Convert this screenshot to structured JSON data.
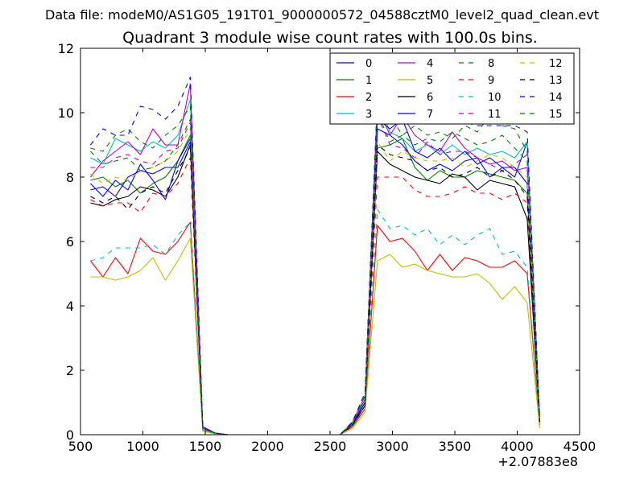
{
  "chart_data": {
    "type": "line",
    "suptitle": "Data file: modeM0/AS1G05_191T01_9000000572_04588cztM0_level2_quad_clean.evt",
    "title": "Quadrant 3 module wise count rates with 100.0s bins.",
    "xlabel": "",
    "ylabel": "",
    "x_offset_label": "+2.07883e8",
    "xlim": [
      500,
      4500
    ],
    "ylim": [
      0,
      12
    ],
    "xticks": [
      500,
      1000,
      1500,
      2000,
      2500,
      3000,
      3500,
      4000,
      4500
    ],
    "yticks": [
      0,
      2,
      4,
      6,
      8,
      10,
      12
    ],
    "grid": false,
    "legend": {
      "position": "top-right",
      "columns": 4
    },
    "x": [
      580,
      680,
      780,
      880,
      980,
      1080,
      1180,
      1280,
      1380,
      1480,
      1580,
      1680,
      1780,
      1880,
      1980,
      2080,
      2180,
      2280,
      2380,
      2480,
      2580,
      2680,
      2780,
      2880,
      2980,
      3080,
      3180,
      3280,
      3380,
      3480,
      3580,
      3680,
      3780,
      3880,
      3980,
      4080,
      4180
    ],
    "series": [
      {
        "name": "0",
        "color": "#0000ff",
        "dash": "solid",
        "values": [
          7.6,
          7.7,
          7.4,
          8.0,
          8.2,
          8.1,
          8.3,
          8.3,
          9.1,
          0.25,
          0.05,
          0,
          0,
          0,
          0,
          0,
          0,
          0,
          0,
          0,
          0,
          0.3,
          1.0,
          9.5,
          9.3,
          9.0,
          8.5,
          8.2,
          8.4,
          8.2,
          8.5,
          8.6,
          8.0,
          8.3,
          8.0,
          9.1,
          0.5
        ]
      },
      {
        "name": "1",
        "color": "#008000",
        "dash": "solid",
        "values": [
          7.9,
          8.0,
          7.7,
          7.9,
          7.5,
          7.8,
          8.0,
          8.5,
          9.3,
          0.2,
          0.05,
          0,
          0,
          0,
          0,
          0,
          0,
          0,
          0,
          0,
          0,
          0.35,
          1.1,
          8.9,
          9.0,
          9.2,
          8.3,
          7.9,
          8.2,
          8.0,
          8.0,
          8.2,
          8.1,
          8.0,
          7.9,
          7.5,
          0.5
        ]
      },
      {
        "name": "2",
        "color": "#ff0000",
        "dash": "solid",
        "values": [
          5.4,
          4.9,
          5.5,
          5.0,
          6.1,
          5.7,
          5.6,
          6.0,
          6.6,
          0.15,
          0.05,
          0,
          0,
          0,
          0,
          0,
          0,
          0,
          0,
          0,
          0,
          0.25,
          0.8,
          6.5,
          6.0,
          6.1,
          5.7,
          5.1,
          5.6,
          5.1,
          5.5,
          5.4,
          5.2,
          5.2,
          5.4,
          5.0,
          0.3
        ]
      },
      {
        "name": "3",
        "color": "#00bfbf",
        "dash": "solid",
        "values": [
          8.6,
          8.4,
          9.2,
          9.0,
          8.8,
          9.1,
          8.9,
          9.3,
          10.4,
          0.2,
          0.05,
          0,
          0,
          0,
          0,
          0,
          0,
          0,
          0,
          0,
          0,
          0.4,
          1.2,
          10.4,
          9.4,
          9.2,
          8.8,
          9.0,
          8.7,
          9.0,
          8.7,
          8.9,
          8.7,
          8.8,
          8.6,
          9.1,
          0.5
        ]
      },
      {
        "name": "4",
        "color": "#bf00bf",
        "dash": "solid",
        "values": [
          8.0,
          8.5,
          8.8,
          9.1,
          8.7,
          9.5,
          9.0,
          9.0,
          10.9,
          0.2,
          0.05,
          0,
          0,
          0,
          0,
          0,
          0,
          0,
          0,
          0,
          0,
          0.4,
          1.2,
          10.2,
          9.3,
          9.9,
          9.3,
          9.0,
          8.8,
          9.4,
          8.9,
          8.6,
          8.4,
          8.5,
          8.2,
          8.3,
          0.5
        ]
      },
      {
        "name": "5",
        "color": "#bfbf00",
        "dash": "solid",
        "values": [
          4.9,
          4.9,
          4.8,
          4.9,
          5.1,
          5.5,
          4.8,
          5.4,
          6.1,
          0.1,
          0.03,
          0,
          0,
          0,
          0,
          0,
          0,
          0,
          0,
          0,
          0,
          0.2,
          0.7,
          5.4,
          5.6,
          5.2,
          5.3,
          5.1,
          5.0,
          4.9,
          4.9,
          5.0,
          4.7,
          4.2,
          4.6,
          4.1,
          0.2
        ]
      },
      {
        "name": "6",
        "color": "#000000",
        "dash": "solid",
        "values": [
          7.2,
          7.1,
          7.3,
          7.4,
          7.7,
          7.6,
          7.4,
          8.0,
          9.0,
          0.2,
          0.05,
          0,
          0,
          0,
          0,
          0,
          0,
          0,
          0,
          0,
          0,
          0.3,
          0.9,
          8.8,
          8.4,
          8.2,
          8.0,
          7.9,
          7.8,
          8.1,
          8.0,
          7.6,
          7.9,
          7.8,
          7.7,
          6.7,
          0.4
        ]
      },
      {
        "name": "7",
        "color": "#0000ff",
        "dash": "solid",
        "values": [
          7.8,
          7.4,
          7.9,
          7.6,
          8.4,
          7.9,
          7.3,
          8.5,
          9.2,
          0.2,
          0.05,
          0,
          0,
          0,
          0,
          0,
          0,
          0,
          0,
          0,
          0,
          0.35,
          1.0,
          9.8,
          9.5,
          9.8,
          8.8,
          8.6,
          8.9,
          8.5,
          8.8,
          8.4,
          8.6,
          8.3,
          8.3,
          7.8,
          0.5
        ]
      },
      {
        "name": "8",
        "color": "#008000",
        "dash": "dashed",
        "values": [
          8.9,
          8.8,
          9.3,
          9.5,
          9.1,
          8.9,
          9.3,
          9.6,
          10.2,
          0.2,
          0.05,
          0,
          0,
          0,
          0,
          0,
          0,
          0,
          0,
          0,
          0,
          0.4,
          1.3,
          10.6,
          9.9,
          9.3,
          9.6,
          9.3,
          9.4,
          9.2,
          9.6,
          9.4,
          9.9,
          9.6,
          9.5,
          8.8,
          0.5
        ]
      },
      {
        "name": "9",
        "color": "#ff0000",
        "dash": "dashed",
        "values": [
          7.3,
          7.1,
          7.2,
          7.2,
          6.9,
          7.5,
          7.4,
          7.8,
          8.6,
          0.2,
          0.05,
          0,
          0,
          0,
          0,
          0,
          0,
          0,
          0,
          0,
          0,
          0.3,
          0.9,
          8.0,
          8.0,
          8.0,
          7.6,
          7.4,
          7.4,
          7.5,
          7.7,
          7.5,
          7.5,
          7.3,
          7.5,
          7.2,
          0.4
        ]
      },
      {
        "name": "10",
        "color": "#00bfbf",
        "dash": "dashed",
        "values": [
          5.4,
          5.5,
          5.8,
          5.8,
          5.8,
          5.9,
          5.6,
          6.2,
          6.6,
          0.15,
          0.03,
          0,
          0,
          0,
          0,
          0,
          0,
          0,
          0,
          0,
          0,
          0.25,
          0.9,
          7.0,
          6.4,
          6.5,
          6.2,
          6.4,
          5.9,
          6.2,
          5.9,
          6.2,
          6.4,
          5.6,
          5.7,
          5.2,
          0.3
        ]
      },
      {
        "name": "11",
        "color": "#bf00bf",
        "dash": "dashed",
        "values": [
          8.3,
          8.3,
          8.6,
          8.7,
          8.5,
          8.4,
          8.8,
          8.9,
          9.7,
          0.2,
          0.05,
          0,
          0,
          0,
          0,
          0,
          0,
          0,
          0,
          0,
          0,
          0.35,
          1.1,
          9.9,
          9.0,
          8.9,
          8.6,
          9.1,
          8.7,
          8.8,
          8.8,
          8.6,
          8.4,
          8.2,
          8.4,
          8.7,
          0.5
        ]
      },
      {
        "name": "12",
        "color": "#bfbf00",
        "dash": "dashed",
        "values": [
          8.1,
          7.8,
          8.0,
          7.9,
          8.2,
          8.3,
          8.5,
          8.8,
          9.5,
          0.2,
          0.05,
          0,
          0,
          0,
          0,
          0,
          0,
          0,
          0,
          0,
          0,
          0.4,
          1.2,
          9.1,
          8.5,
          8.8,
          8.6,
          8.5,
          8.5,
          8.6,
          8.3,
          8.5,
          8.7,
          8.6,
          8.3,
          8.0,
          0.4
        ]
      },
      {
        "name": "13",
        "color": "#000000",
        "dash": "dashed",
        "values": [
          7.4,
          7.2,
          7.4,
          7.0,
          7.5,
          7.7,
          7.5,
          8.2,
          8.9,
          0.2,
          0.05,
          0,
          0,
          0,
          0,
          0,
          0,
          0,
          0,
          0,
          0,
          0.3,
          0.9,
          9.0,
          8.7,
          8.6,
          8.5,
          8.2,
          8.3,
          8.0,
          8.1,
          8.3,
          8.0,
          8.2,
          7.9,
          7.4,
          0.4
        ]
      },
      {
        "name": "14",
        "color": "#0000ff",
        "dash": "dashed",
        "values": [
          9.0,
          9.5,
          9.3,
          9.3,
          10.2,
          10.1,
          9.8,
          10.2,
          11.1,
          0.25,
          0.05,
          0,
          0,
          0,
          0,
          0,
          0,
          0,
          0,
          0,
          0,
          0.4,
          1.3,
          10.3,
          10.2,
          10.3,
          10.0,
          9.8,
          9.7,
          9.8,
          9.7,
          9.6,
          9.6,
          9.6,
          9.6,
          9.4,
          0.5
        ]
      },
      {
        "name": "15",
        "color": "#008000",
        "dash": "dashed",
        "values": [
          8.8,
          8.4,
          8.5,
          8.6,
          8.2,
          8.3,
          8.5,
          9.0,
          9.8,
          0.2,
          0.05,
          0,
          0,
          0,
          0,
          0,
          0,
          0,
          0,
          0,
          0,
          0.35,
          1.2,
          10.0,
          9.1,
          9.3,
          9.0,
          9.2,
          9.1,
          9.4,
          9.2,
          9.0,
          9.1,
          9.3,
          8.9,
          8.5,
          0.5
        ]
      }
    ]
  }
}
